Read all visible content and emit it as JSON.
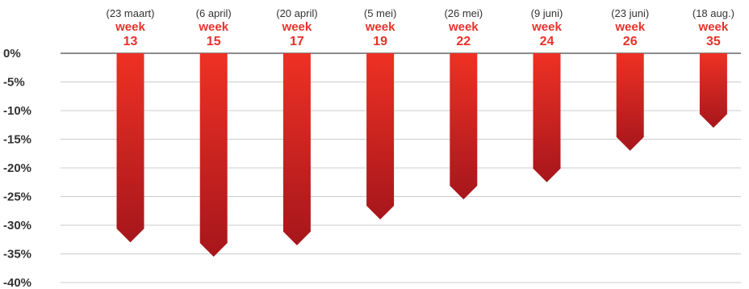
{
  "chart_data": {
    "type": "bar",
    "title": "",
    "xlabel": "",
    "ylabel": "",
    "ylim": [
      -40,
      0
    ],
    "grid": true,
    "y_ticks": [
      "0%",
      "-5%",
      "-10%",
      "-15%",
      "-20%",
      "-25%",
      "-30%",
      "-35%",
      "-40%"
    ],
    "y_tick_values": [
      0,
      -5,
      -10,
      -15,
      -20,
      -25,
      -30,
      -35,
      -40
    ],
    "categories": [
      {
        "date": "(23 maart)",
        "week_label": "week",
        "week_number": "13"
      },
      {
        "date": "(6 april)",
        "week_label": "week",
        "week_number": "15"
      },
      {
        "date": "(20 april)",
        "week_label": "week",
        "week_number": "17"
      },
      {
        "date": "(5 mei)",
        "week_label": "week",
        "week_number": "19"
      },
      {
        "date": "(26 mei)",
        "week_label": "week",
        "week_number": "22"
      },
      {
        "date": "(9 juni)",
        "week_label": "week",
        "week_number": "24"
      },
      {
        "date": "(23 juni)",
        "week_label": "week",
        "week_number": "26"
      },
      {
        "date": "(18 aug.)",
        "week_label": "week",
        "week_number": "35"
      }
    ],
    "values": [
      -33,
      -35.5,
      -33.5,
      -29,
      -25.5,
      -22.5,
      -17,
      -13
    ],
    "colors": {
      "bar_light": "#ee3124",
      "bar_dark": "#a6161c",
      "week_text": "#e8312a",
      "axis_line": "#666666",
      "grid_line": "#cccccc",
      "tick_text": "#333333"
    }
  }
}
